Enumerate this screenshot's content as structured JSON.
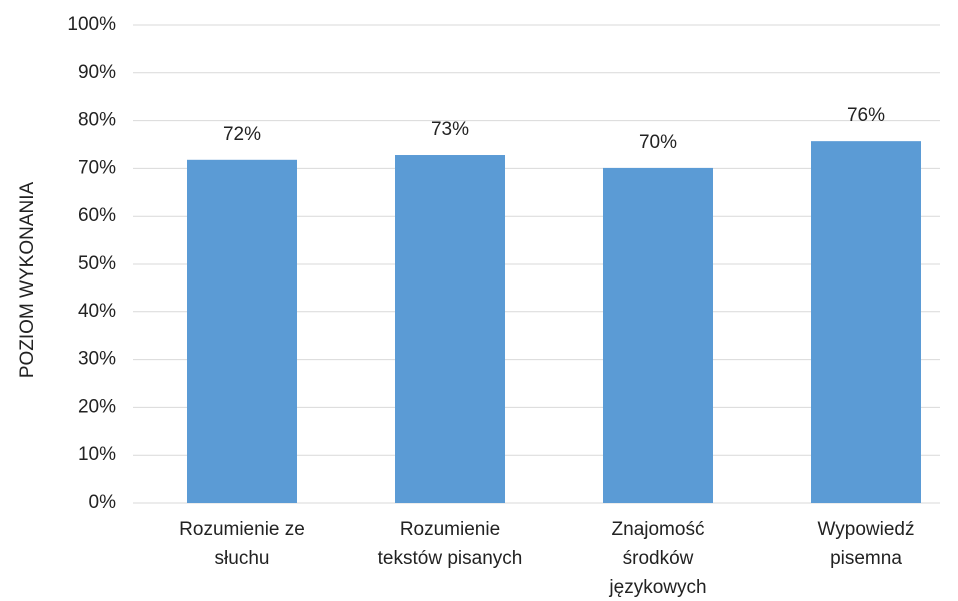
{
  "chart_data": {
    "type": "bar",
    "y_axis_label": "POZIOM WYKONANIA",
    "categories": [
      [
        "Rozumienie ze",
        "słuchu"
      ],
      [
        "Rozumienie",
        "tekstów pisanych"
      ],
      [
        "Znajomość",
        "środków",
        "językowych"
      ],
      [
        "Wypowiedź",
        "pisemna"
      ]
    ],
    "values": [
      71.8,
      72.8,
      70.1,
      75.7
    ],
    "value_labels": [
      "72%",
      "73%",
      "70%",
      "76%"
    ],
    "color": "#5b9bd5",
    "ylim": [
      0,
      100
    ],
    "yticks": [
      {
        "value": 0,
        "label": "0%"
      },
      {
        "value": 10,
        "label": "10%"
      },
      {
        "value": 20,
        "label": "20%"
      },
      {
        "value": 30,
        "label": "30%"
      },
      {
        "value": 40,
        "label": "40%"
      },
      {
        "value": 50,
        "label": "50%"
      },
      {
        "value": 60,
        "label": "60%"
      },
      {
        "value": 70,
        "label": "70%"
      },
      {
        "value": 80,
        "label": "80%"
      },
      {
        "value": 90,
        "label": "90%"
      },
      {
        "value": 100,
        "label": "100%"
      }
    ],
    "grid": true
  }
}
